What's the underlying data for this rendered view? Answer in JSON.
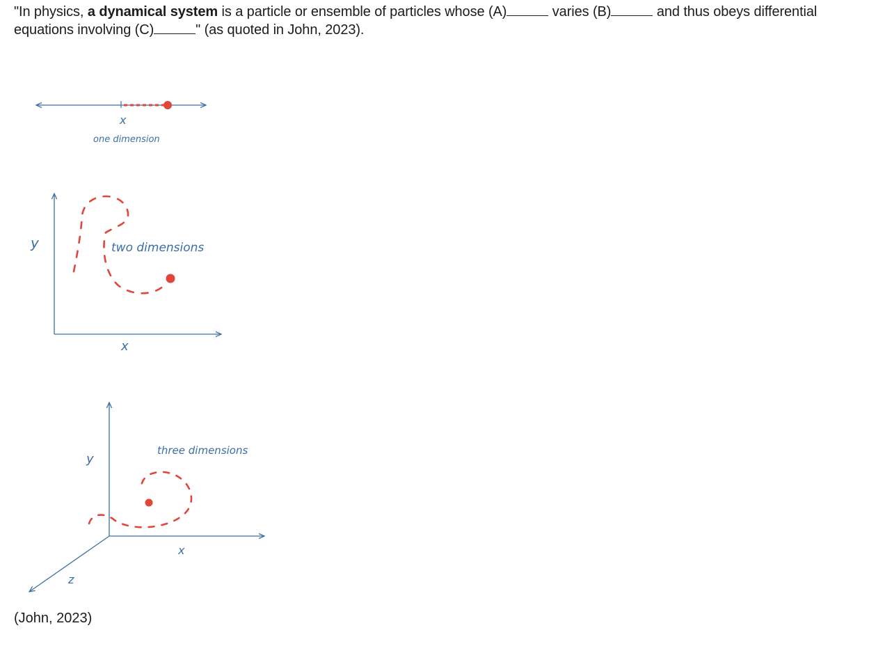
{
  "question": {
    "part1": "\"In physics, ",
    "bold": "a dynamical system",
    "part2": " is a particle or ensemble of particles whose (A)",
    "part3": " varies (B)",
    "part4": " and thus obeys differential equations involving (C)",
    "part5": "\" (as quoted in John, 2023)."
  },
  "figure": {
    "one_d": {
      "axis_label": "x",
      "caption": "one dimension"
    },
    "two_d": {
      "x_label": "x",
      "y_label": "y",
      "caption": "two dimensions"
    },
    "three_d": {
      "x_label": "x",
      "y_label": "y",
      "z_label": "z",
      "caption": "three dimensions"
    },
    "colors": {
      "axis": "#3b6ea8",
      "path": "#e0463a"
    }
  },
  "citation": "(John, 2023)"
}
